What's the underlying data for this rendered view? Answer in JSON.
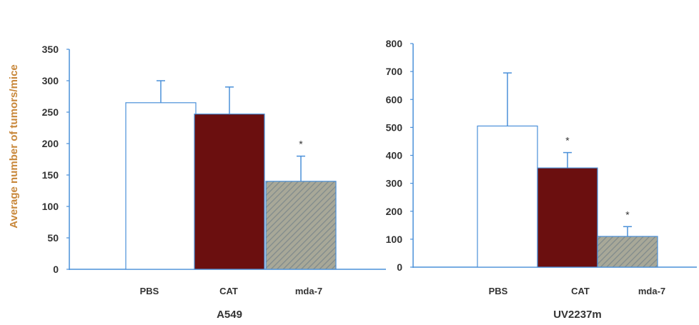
{
  "y_axis_label": "Average number of tumors/mice",
  "colors": {
    "axis": "#4a90d9",
    "PBS": "#ffffff",
    "CAT": "#6b0f0f",
    "mda-7": "#9a9a8c",
    "error_bar": "#4a90d9"
  },
  "chart_data": [
    {
      "type": "bar",
      "title": "A549",
      "categories": [
        "PBS",
        "CAT",
        "mda-7"
      ],
      "values": [
        265,
        247,
        140
      ],
      "error_upper": [
        300,
        290,
        180
      ],
      "significance": [
        "",
        "",
        "*"
      ],
      "ylim": [
        0,
        350
      ],
      "yticks": [
        0,
        50,
        100,
        150,
        200,
        250,
        300,
        350
      ],
      "ylabel": "Average number of tumors/mice"
    },
    {
      "type": "bar",
      "title": "UV2237m",
      "categories": [
        "PBS",
        "CAT",
        "mda-7"
      ],
      "values": [
        505,
        355,
        110
      ],
      "error_upper": [
        695,
        410,
        145
      ],
      "significance": [
        "",
        "*",
        "*"
      ],
      "ylim": [
        0,
        800
      ],
      "yticks": [
        0,
        100,
        200,
        300,
        400,
        500,
        600,
        700,
        800
      ],
      "ylabel": ""
    }
  ]
}
